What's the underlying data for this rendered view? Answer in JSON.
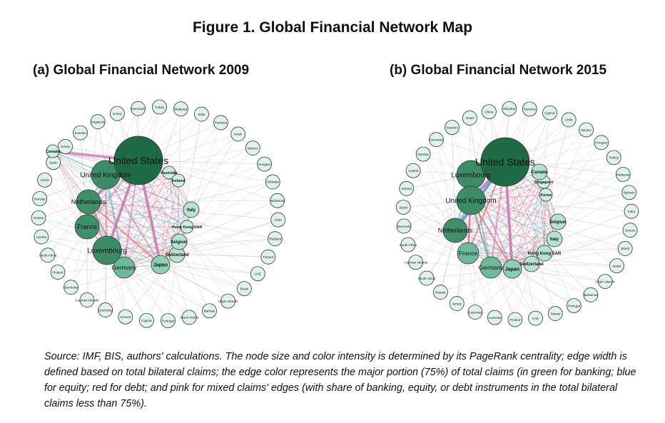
{
  "figure_title": "Figure 1. Global Financial Network Map",
  "panel_a": {
    "title": "(a) Global Financial Network 2009",
    "big_nodes": [
      {
        "label": "United States",
        "rank": 1
      },
      {
        "label": "United Kingdom",
        "rank": 2
      },
      {
        "label": "Netherlands",
        "rank": 3
      },
      {
        "label": "France",
        "rank": 3
      },
      {
        "label": "Luxembourg",
        "rank": 2
      },
      {
        "label": "Germany",
        "rank": 4
      },
      {
        "label": "Japan",
        "rank": 5
      },
      {
        "label": "Switzerland",
        "rank": 6
      },
      {
        "label": "Italy",
        "rank": 6
      },
      {
        "label": "Hong Kong SAR",
        "rank": 7
      },
      {
        "label": "Belgium",
        "rank": 6
      },
      {
        "label": "Australia",
        "rank": 7
      },
      {
        "label": "Ireland",
        "rank": 7
      },
      {
        "label": "Canada",
        "rank": 7
      }
    ],
    "ring_nodes": [
      "Korea",
      "Denmark",
      "Turkey",
      "Malaysia",
      "India",
      "Panama",
      "Israel",
      "Mexico",
      "Hungary",
      "Gibraltar",
      "Bahamas",
      "Chile",
      "Thailand",
      "Poland",
      "UAE",
      "Brazil",
      "Virgin Islands",
      "Bahrain",
      "Saudi Arabia",
      "Portugal",
      "Cyprus",
      "Greece",
      "Guernsey",
      "Cayman Islands",
      "Bermuda",
      "Finland",
      "South Africa",
      "Austria",
      "Russia",
      "Norway",
      "China",
      "Spain",
      "Jersey",
      "Sweden",
      "Singapore"
    ]
  },
  "panel_b": {
    "title": "(b) Global Financial Network 2015",
    "big_nodes": [
      {
        "label": "United States",
        "rank": 1
      },
      {
        "label": "Luxembourg",
        "rank": 2
      },
      {
        "label": "United Kingdom",
        "rank": 2
      },
      {
        "label": "Netherlands",
        "rank": 3
      },
      {
        "label": "France",
        "rank": 4
      },
      {
        "label": "Germany",
        "rank": 4
      },
      {
        "label": "Japan",
        "rank": 5
      },
      {
        "label": "Switzerland",
        "rank": 6
      },
      {
        "label": "Hong Kong SAR",
        "rank": 6
      },
      {
        "label": "Italy",
        "rank": 6
      },
      {
        "label": "Belgium",
        "rank": 6
      },
      {
        "label": "Canada",
        "rank": 6
      },
      {
        "label": "Korea",
        "rank": 7
      },
      {
        "label": "Singapore",
        "rank": 7
      }
    ],
    "ring_nodes": [
      "China",
      "Gibraltar",
      "Panama",
      "Cyprus",
      "Chile",
      "Mexico",
      "Hungary",
      "Turkey",
      "Malaysia",
      "Bahrain",
      "India",
      "Greece",
      "Brazil",
      "Israel",
      "Virgin Islands",
      "Bahamas",
      "Portugal",
      "Taiwan",
      "UAE",
      "Finland",
      "Australia",
      "Guernsey",
      "Jersey",
      "Russia",
      "South Africa",
      "Cayman Islands",
      "South Africa",
      "Bermuda",
      "Spain",
      "Ireland",
      "Austria",
      "Norway",
      "Denmark",
      "Sweden",
      "Israel"
    ]
  },
  "caption": "Source: IMF, BIS, authors' calculations. The node size and color intensity is determined by its PageRank centrality; edge width is defined based on total bilateral claims; the edge color represents the major portion (75%) of total claims (in green for banking; blue for equity; red for debt; and pink for mixed claims' edges (with share of banking, equity, or debt instruments in the total bilateral claims less than 75%).",
  "colors": {
    "banking": "#2e8b57",
    "equity": "#3ab0e0",
    "debt": "#e05050",
    "mixed": "#c878b8"
  }
}
